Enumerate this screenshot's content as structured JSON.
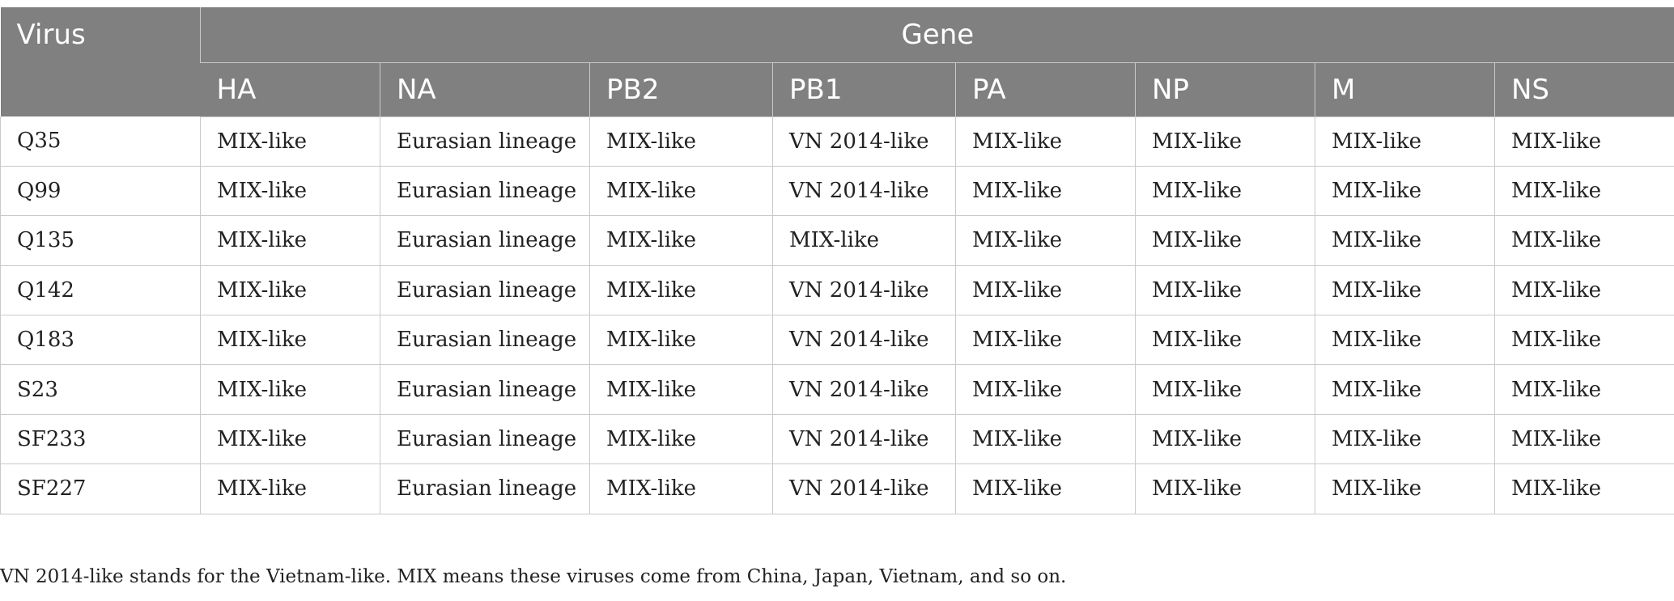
{
  "table": {
    "header": {
      "virus": "Virus",
      "group": "Gene",
      "genes": [
        "HA",
        "NA",
        "PB2",
        "PB1",
        "PA",
        "NP",
        "M",
        "NS"
      ]
    },
    "rows": [
      [
        "Q35",
        "MIX-like",
        "Eurasian lineage",
        "MIX-like",
        "VN 2014-like",
        "MIX-like",
        "MIX-like",
        "MIX-like",
        "MIX-like"
      ],
      [
        "Q99",
        "MIX-like",
        "Eurasian lineage",
        "MIX-like",
        "VN 2014-like",
        "MIX-like",
        "MIX-like",
        "MIX-like",
        "MIX-like"
      ],
      [
        "Q135",
        "MIX-like",
        "Eurasian lineage",
        "MIX-like",
        "MIX-like",
        "MIX-like",
        "MIX-like",
        "MIX-like",
        "MIX-like"
      ],
      [
        "Q142",
        "MIX-like",
        "Eurasian lineage",
        "MIX-like",
        "VN 2014-like",
        "MIX-like",
        "MIX-like",
        "MIX-like",
        "MIX-like"
      ],
      [
        "Q183",
        "MIX-like",
        "Eurasian lineage",
        "MIX-like",
        "VN 2014-like",
        "MIX-like",
        "MIX-like",
        "MIX-like",
        "MIX-like"
      ],
      [
        "S23",
        "MIX-like",
        "Eurasian lineage",
        "MIX-like",
        "VN 2014-like",
        "MIX-like",
        "MIX-like",
        "MIX-like",
        "MIX-like"
      ],
      [
        "SF233",
        "MIX-like",
        "Eurasian lineage",
        "MIX-like",
        "VN 2014-like",
        "MIX-like",
        "MIX-like",
        "MIX-like",
        "MIX-like"
      ],
      [
        "SF227",
        "MIX-like",
        "Eurasian lineage",
        "MIX-like",
        "VN 2014-like",
        "MIX-like",
        "MIX-like",
        "MIX-like",
        "MIX-like"
      ]
    ]
  },
  "footnote": "VN 2014-like stands for the Vietnam-like. MIX means these viruses come from China, Japan, Vietnam, and so on.",
  "colors": {
    "header_bg": "#808080",
    "header_text": "#ffffff",
    "grid": "#c9c9c9",
    "body_text": "#222222"
  }
}
